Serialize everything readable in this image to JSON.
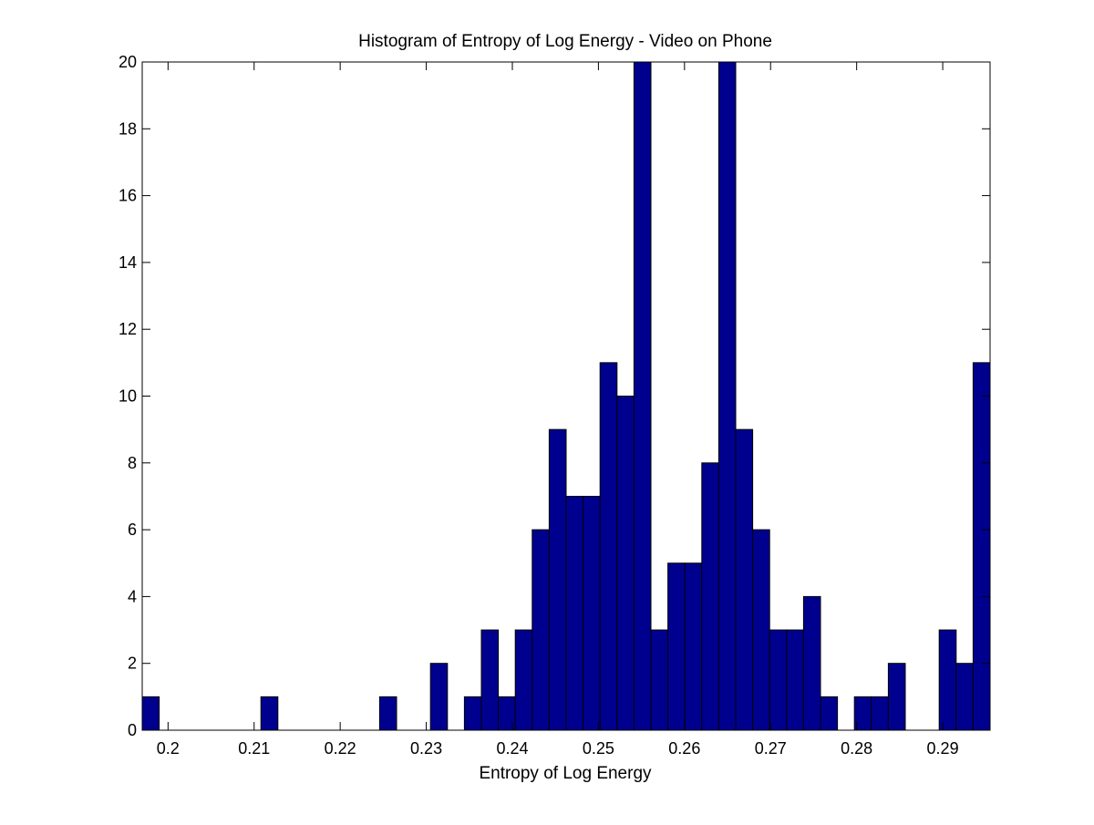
{
  "chart_data": {
    "type": "bar",
    "title": "Histogram of Entropy of Log Energy - Video on Phone",
    "xlabel": "Entropy of Log Energy",
    "ylabel": "",
    "xlim": [
      0.197,
      0.2955
    ],
    "ylim": [
      0,
      20
    ],
    "x_ticks": [
      0.2,
      0.21,
      0.22,
      0.23,
      0.24,
      0.25,
      0.26,
      0.27,
      0.28,
      0.29
    ],
    "x_tick_labels": [
      "0.2",
      "0.21",
      "0.22",
      "0.23",
      "0.24",
      "0.25",
      "0.26",
      "0.27",
      "0.28",
      "0.29"
    ],
    "y_ticks": [
      0,
      2,
      4,
      6,
      8,
      10,
      12,
      14,
      16,
      18,
      20
    ],
    "y_tick_labels": [
      "0",
      "2",
      "4",
      "6",
      "8",
      "10",
      "12",
      "14",
      "16",
      "18",
      "20"
    ],
    "bin_start": 0.197,
    "bin_width": 0.00197,
    "counts": [
      1,
      0,
      0,
      0,
      0,
      0,
      0,
      1,
      0,
      0,
      0,
      0,
      0,
      0,
      1,
      0,
      0,
      2,
      0,
      1,
      3,
      1,
      3,
      6,
      9,
      7,
      7,
      11,
      10,
      20,
      3,
      5,
      5,
      8,
      20,
      9,
      6,
      3,
      3,
      4,
      1,
      0,
      1,
      1,
      2,
      0,
      0,
      3,
      2,
      11
    ],
    "grid": false,
    "legend": "none",
    "colors": {
      "bar_fill": "#00008f",
      "bar_edge": "#000000",
      "axes": "#000000"
    }
  }
}
